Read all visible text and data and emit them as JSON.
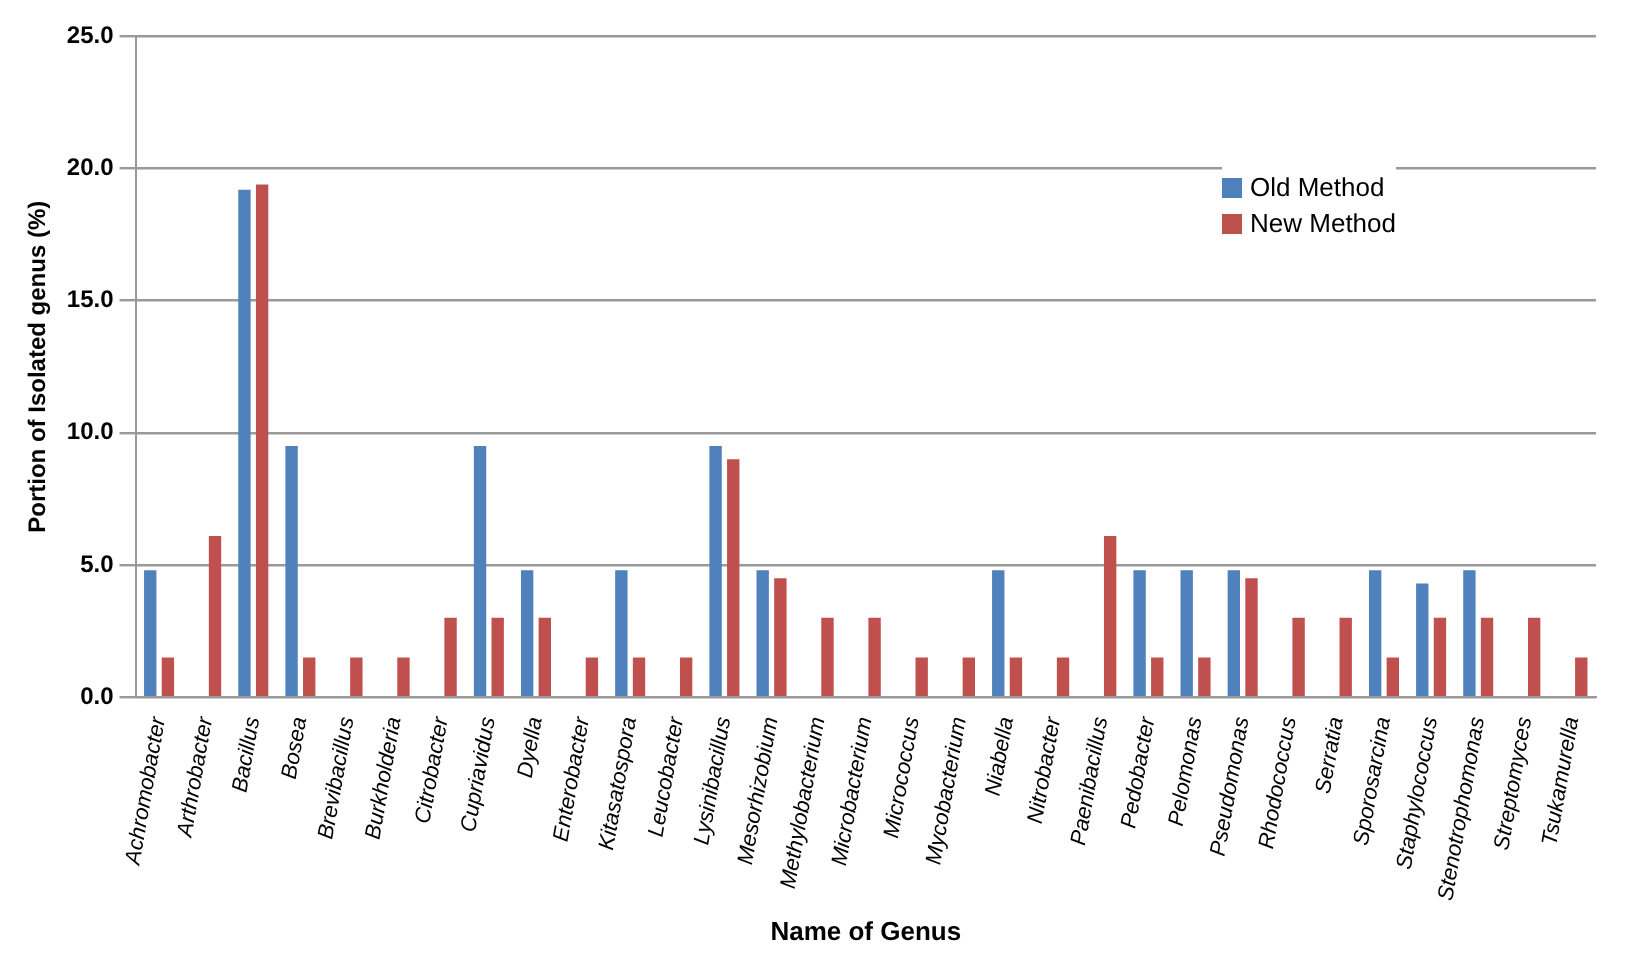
{
  "chart_data": {
    "type": "bar",
    "xlabel": "Name of Genus",
    "ylabel": "Portion of Isolated genus (%)",
    "categories": [
      "Achromobacter",
      "Arthrobacter",
      "Bacillus",
      "Bosea",
      "Brevibacillus",
      "Burkholderia",
      "Citrobacter",
      "Cupriavidus",
      "Dyella",
      "Enterobacter",
      "Kitasatospora",
      "Leucobacter",
      "Lysinibacillus",
      "Mesorhizobium",
      "Methylobacterium",
      "Microbacterium",
      "Micrococcus",
      "Mycobacterium",
      "Niabella",
      "Nitrobacter",
      "Paenibacillus",
      "Pedobacter",
      "Pelomonas",
      "Pseudomonas",
      "Rhodococcus",
      "Serratia",
      "Sporosarcina",
      "Staphylococcus",
      "Stenotrophomonas",
      "Streptomyces",
      "Tsukamurella"
    ],
    "series": [
      {
        "name": "Old Method",
        "color": "#4f81bd",
        "values": [
          4.8,
          0,
          19.2,
          9.5,
          0,
          0,
          0,
          9.5,
          4.8,
          0,
          4.8,
          0,
          9.5,
          4.8,
          0,
          0,
          0,
          0,
          4.8,
          0,
          0,
          4.8,
          4.8,
          4.8,
          0,
          0,
          4.8,
          4.3,
          4.8,
          0,
          0
        ]
      },
      {
        "name": "New Method",
        "color": "#c0504d",
        "values": [
          1.5,
          6.1,
          19.4,
          1.5,
          1.5,
          1.5,
          3.0,
          3.0,
          3.0,
          1.5,
          1.5,
          1.5,
          9.0,
          4.5,
          3.0,
          3.0,
          1.5,
          1.5,
          1.5,
          1.5,
          6.1,
          1.5,
          1.5,
          4.5,
          3.0,
          3.0,
          1.5,
          3.0,
          3.0,
          3.0,
          1.5
        ]
      }
    ],
    "ylim": [
      0,
      25
    ],
    "yticks": [
      {
        "value": 0,
        "label": "0.0"
      },
      {
        "value": 5,
        "label": "5.0"
      },
      {
        "value": 10,
        "label": "10.0"
      },
      {
        "value": 15,
        "label": "15.0"
      },
      {
        "value": 20,
        "label": "20.0"
      },
      {
        "value": 25,
        "label": "25.0"
      }
    ],
    "grid": "y",
    "legend": "top right"
  }
}
